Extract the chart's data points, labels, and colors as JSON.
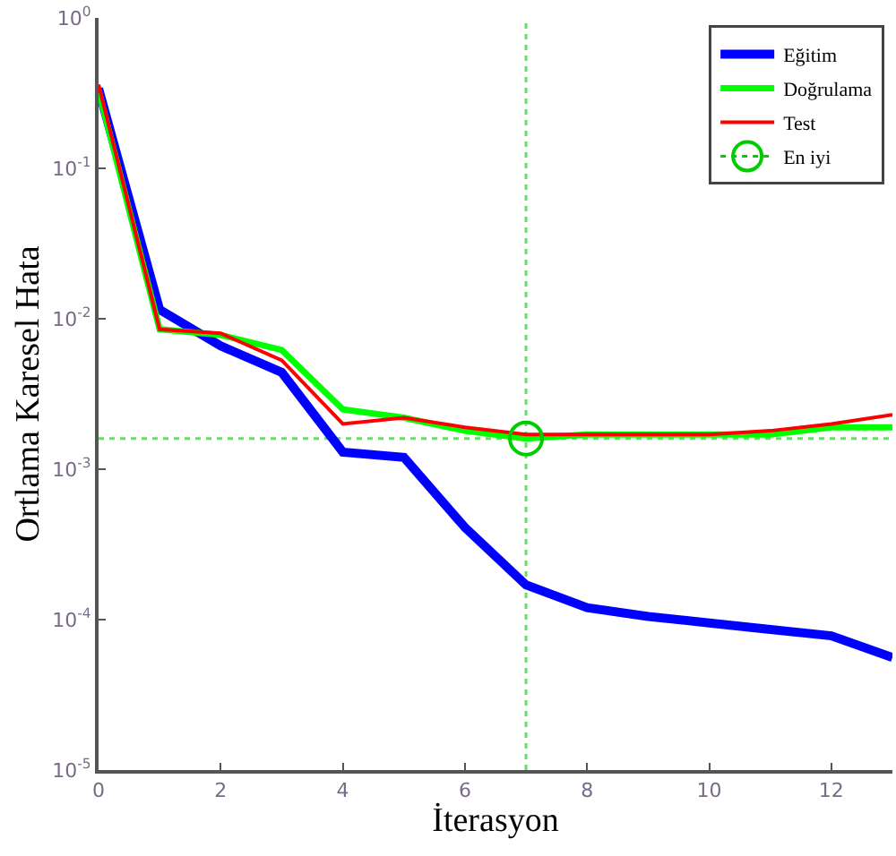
{
  "chart_data": {
    "type": "line",
    "xlabel": "İterasyon",
    "ylabel": "Ortlama Karesel Hata",
    "x": [
      0,
      1,
      2,
      3,
      4,
      5,
      6,
      7,
      8,
      9,
      10,
      11,
      12,
      13
    ],
    "series": [
      {
        "name": "Eğitim",
        "color": "#0000ff",
        "values": [
          0.34,
          0.0115,
          0.0066,
          0.0044,
          0.0013,
          0.0012,
          0.00041,
          0.00017,
          0.00012,
          0.000105,
          9.5e-05,
          8.6e-05,
          7.8e-05,
          5.6e-05
        ]
      },
      {
        "name": "Doğrulama",
        "color": "#00ff00",
        "values": [
          0.33,
          0.0085,
          0.0078,
          0.0062,
          0.0025,
          0.0022,
          0.0018,
          0.0016,
          0.0017,
          0.0017,
          0.0017,
          0.0017,
          0.0019,
          0.0019
        ]
      },
      {
        "name": "Test",
        "color": "#ff0000",
        "values": [
          0.36,
          0.0085,
          0.008,
          0.0053,
          0.002,
          0.0022,
          0.0019,
          0.0017,
          0.0017,
          0.0017,
          0.0017,
          0.0018,
          0.002,
          0.0023
        ]
      },
      {
        "name": "En iyi",
        "type": "scatter",
        "color": "#00cc00",
        "x": [
          7
        ],
        "values": [
          0.0016
        ],
        "marker": "circle",
        "line_style": "dotted"
      }
    ],
    "ref_lines": [
      {
        "axis": "x",
        "value": 7,
        "color": "#66dd66",
        "line_style": "dotted"
      },
      {
        "axis": "y",
        "value": 0.0016,
        "color": "#66dd66",
        "line_style": "dotted"
      }
    ],
    "log": "y",
    "xlim": [
      0,
      13
    ],
    "xticks": [
      0,
      2,
      4,
      6,
      8,
      10,
      12
    ],
    "ylim": [
      1e-05,
      1
    ],
    "yticks": [
      {
        "value": 1,
        "label": "10$^{0}$"
      },
      {
        "value": 0.1,
        "label": "10$^{-1}$"
      },
      {
        "value": 0.01,
        "label": "10$^{-2}$"
      },
      {
        "value": 0.001,
        "label": "10$^{-3}$"
      },
      {
        "value": 0.0001,
        "label": "10$^{-4}$"
      },
      {
        "value": 1e-05,
        "label": "10$^{-5}$"
      }
    ],
    "grid": false,
    "legend": "top right",
    "marker": "none",
    "line_style": "solid"
  }
}
